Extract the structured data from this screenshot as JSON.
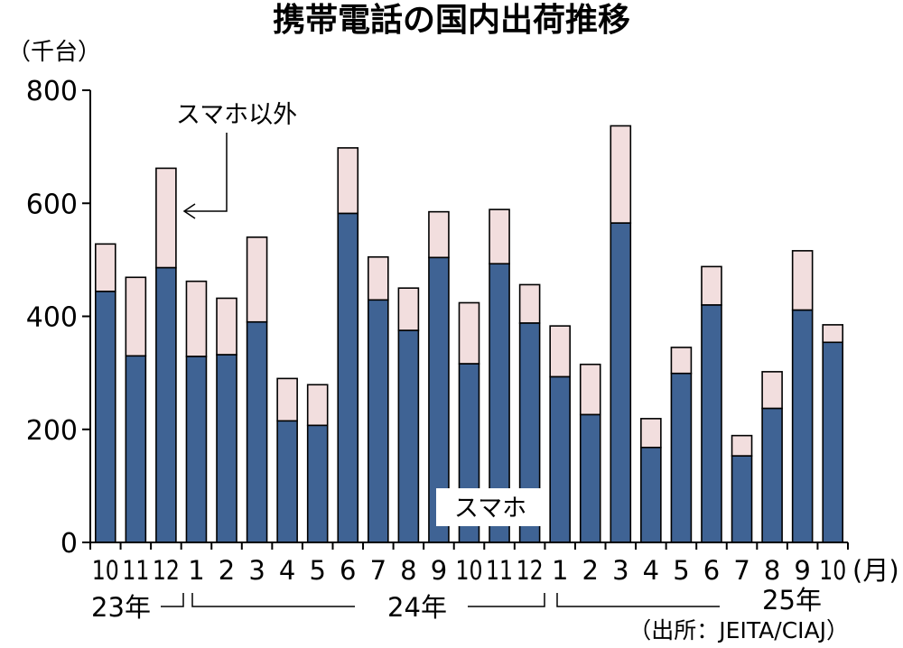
{
  "colors": {
    "smartphone": "#3f6394",
    "other": "#f2dede",
    "outline": "#000000",
    "background": "#ffffff"
  },
  "chart_data": {
    "type": "bar",
    "stacked": true,
    "title": "携帯電話の国内出荷推移",
    "unit_label": "（千台）",
    "month_label": "(月)",
    "ylim": [
      0,
      800
    ],
    "yticks": [
      "0",
      "200",
      "400",
      "600",
      "800"
    ],
    "categories": [
      "10",
      "11",
      "12",
      "1",
      "2",
      "3",
      "4",
      "5",
      "6",
      "7",
      "8",
      "9",
      "10",
      "11",
      "12",
      "1",
      "2",
      "3",
      "4",
      "5",
      "6",
      "7",
      "8",
      "9",
      "10"
    ],
    "years": [
      "23年",
      "24年",
      "25年"
    ],
    "series": [
      {
        "name": "スマホ",
        "values": [
          444,
          330,
          486,
          329,
          332,
          390,
          215,
          207,
          582,
          429,
          375,
          504,
          316,
          493,
          388,
          293,
          226,
          565,
          168,
          299,
          420,
          153,
          237,
          411,
          354
        ]
      },
      {
        "name": "スマホ以外",
        "values": [
          84,
          139,
          176,
          133,
          100,
          150,
          75,
          72,
          116,
          76,
          75,
          81,
          108,
          96,
          68,
          90,
          89,
          172,
          51,
          46,
          68,
          36,
          65,
          105,
          31
        ]
      }
    ],
    "annotations": {
      "smartphone_label": "スマホ",
      "other_label": "スマホ以外"
    },
    "source": "（出所：JEITA/CIAJ）"
  }
}
